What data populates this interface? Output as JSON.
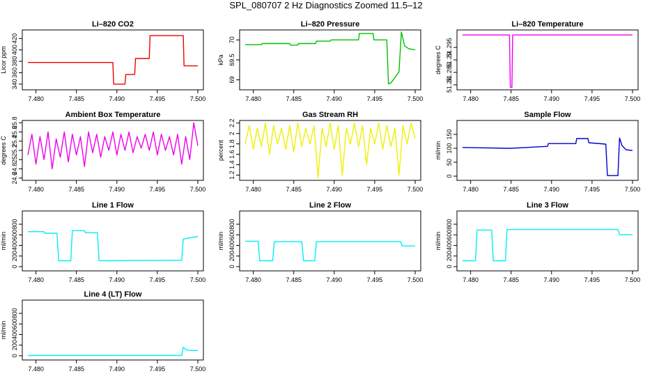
{
  "page": {
    "title": "SPL_080707  2 Hz Diagnostics Zoomed 11.5–12"
  },
  "colors": {
    "red": "#ee0000",
    "green": "#00c000",
    "magenta": "#ee00ee",
    "yellow": "#f0f000",
    "blue": "#0000cc",
    "cyan": "#00f0f0"
  },
  "chart_data": [
    {
      "type": "line",
      "title": "Li–820 CO2",
      "ylabel": "Licor ppm",
      "color": "red",
      "xlim": [
        7.479,
        7.5
      ],
      "xticks": [
        7.48,
        7.485,
        7.49,
        7.495,
        7.5
      ],
      "ylim": [
        330,
        435
      ],
      "yticks": [
        340,
        360,
        380,
        400,
        420
      ],
      "series": [
        {
          "x": [
            7.479,
            7.4895,
            7.4896,
            7.491,
            7.4911,
            7.4922,
            7.4923,
            7.494,
            7.4941,
            7.4982,
            7.4983,
            7.5
          ],
          "y": [
            378,
            378,
            340,
            340,
            357,
            357,
            385,
            385,
            425,
            425,
            372,
            372
          ]
        }
      ]
    },
    {
      "type": "line",
      "title": "Li–820 Pressure",
      "ylabel": "kPa",
      "color": "green",
      "xlim": [
        7.479,
        7.5
      ],
      "xticks": [
        7.48,
        7.485,
        7.49,
        7.495,
        7.5
      ],
      "ylim": [
        68.75,
        70.25
      ],
      "yticks": [
        69.0,
        69.5,
        70.0
      ],
      "series": [
        {
          "x": [
            7.479,
            7.481,
            7.4811,
            7.4845,
            7.4846,
            7.4855,
            7.4856,
            7.4877,
            7.4878,
            7.4895,
            7.4896,
            7.493,
            7.4931,
            7.4948,
            7.4949,
            7.4965,
            7.4967,
            7.497,
            7.498,
            7.4983,
            7.4987,
            7.4992,
            7.5
          ],
          "y": [
            69.88,
            69.88,
            69.91,
            69.91,
            69.87,
            69.87,
            69.91,
            69.91,
            69.97,
            69.97,
            70.0,
            70.0,
            70.16,
            70.16,
            70.0,
            70.0,
            68.9,
            68.92,
            69.2,
            70.2,
            69.85,
            69.78,
            69.75
          ]
        }
      ]
    },
    {
      "type": "line",
      "title": "Li–820 Temperature",
      "ylabel": "degrees C",
      "color": "magenta",
      "xlim": [
        7.479,
        7.5
      ],
      "xticks": [
        7.48,
        7.485,
        7.49,
        7.495,
        7.5
      ],
      "ylim": [
        51.278,
        51.302
      ],
      "yticks": [
        51.28,
        51.285,
        51.29,
        51.295
      ],
      "series": [
        {
          "x": [
            7.479,
            7.4848,
            7.4849,
            7.4851,
            7.4852,
            7.5
          ],
          "y": [
            51.3,
            51.3,
            51.279,
            51.279,
            51.3,
            51.3
          ]
        }
      ]
    },
    {
      "type": "line",
      "title": "Ambient Box Temperature",
      "ylabel": "degrees C",
      "color": "magenta",
      "xlim": [
        7.479,
        7.5
      ],
      "xticks": [
        7.48,
        7.485,
        7.49,
        7.495,
        7.5
      ],
      "ylim": [
        24.55,
        25.85
      ],
      "yticks": [
        24.6,
        24.8,
        25.0,
        25.2,
        25.4,
        25.6,
        25.8
      ],
      "series": [
        {
          "x": [
            7.479,
            7.4795,
            7.48,
            7.4805,
            7.481,
            7.4815,
            7.482,
            7.4825,
            7.483,
            7.4835,
            7.484,
            7.4845,
            7.485,
            7.4855,
            7.486,
            7.4865,
            7.487,
            7.4875,
            7.488,
            7.4885,
            7.489,
            7.4895,
            7.49,
            7.4905,
            7.491,
            7.4915,
            7.492,
            7.4925,
            7.493,
            7.4935,
            7.494,
            7.4945,
            7.495,
            7.4955,
            7.496,
            7.4965,
            7.497,
            7.4975,
            7.498,
            7.4985,
            7.499,
            7.4995,
            7.5
          ],
          "y": [
            25.1,
            25.55,
            24.9,
            25.5,
            25.0,
            25.6,
            24.8,
            25.45,
            25.05,
            25.6,
            24.95,
            25.55,
            25.1,
            25.5,
            24.85,
            25.6,
            25.15,
            25.55,
            25.05,
            25.5,
            25.2,
            25.6,
            25.1,
            25.55,
            25.2,
            25.6,
            25.15,
            25.5,
            25.25,
            25.55,
            25.2,
            25.6,
            25.1,
            25.55,
            25.2,
            25.5,
            25.1,
            25.55,
            24.9,
            25.5,
            25.0,
            25.8,
            25.3
          ]
        }
      ]
    },
    {
      "type": "line",
      "title": "Gas Stream RH",
      "ylabel": "percent",
      "color": "yellow",
      "xlim": [
        7.479,
        7.5
      ],
      "xticks": [
        7.48,
        7.485,
        7.49,
        7.495,
        7.5
      ],
      "ylim": [
        1.1,
        2.25
      ],
      "yticks": [
        1.2,
        1.4,
        1.6,
        1.8,
        2.0,
        2.2
      ],
      "series": [
        {
          "x": [
            7.479,
            7.4795,
            7.48,
            7.4805,
            7.481,
            7.4815,
            7.482,
            7.4825,
            7.483,
            7.4835,
            7.484,
            7.4845,
            7.485,
            7.4855,
            7.486,
            7.4865,
            7.487,
            7.4875,
            7.488,
            7.4885,
            7.489,
            7.4895,
            7.49,
            7.4905,
            7.491,
            7.4915,
            7.492,
            7.4925,
            7.493,
            7.4935,
            7.494,
            7.4945,
            7.495,
            7.4955,
            7.496,
            7.4965,
            7.497,
            7.4975,
            7.498,
            7.4985,
            7.499,
            7.4995,
            7.5
          ],
          "y": [
            1.8,
            2.15,
            1.7,
            2.1,
            1.75,
            2.2,
            1.6,
            2.15,
            1.8,
            2.1,
            1.7,
            2.15,
            1.65,
            2.2,
            1.75,
            2.1,
            1.8,
            2.15,
            1.15,
            2.1,
            1.75,
            2.2,
            1.7,
            2.15,
            1.2,
            2.1,
            1.8,
            2.2,
            1.75,
            2.15,
            1.4,
            2.1,
            1.8,
            2.2,
            1.7,
            2.15,
            1.75,
            2.1,
            1.2,
            2.15,
            1.8,
            2.2,
            1.9
          ]
        }
      ]
    },
    {
      "type": "line",
      "title": "Sample Flow",
      "ylabel": "ml/min",
      "color": "blue",
      "xlim": [
        7.479,
        7.5
      ],
      "xticks": [
        7.48,
        7.485,
        7.49,
        7.495,
        7.5
      ],
      "ylim": [
        -15,
        200
      ],
      "yticks": [
        0,
        50,
        100,
        150
      ],
      "series": [
        {
          "x": [
            7.479,
            7.4848,
            7.4849,
            7.4895,
            7.4896,
            7.493,
            7.4931,
            7.4945,
            7.4946,
            7.4967,
            7.4969,
            7.4982,
            7.4984,
            7.4987,
            7.4992,
            7.5
          ],
          "y": [
            103,
            100,
            100,
            107,
            117,
            117,
            135,
            135,
            120,
            115,
            2,
            2,
            137,
            110,
            95,
            92
          ]
        }
      ]
    },
    {
      "type": "line",
      "title": "Line 1 Flow",
      "ylabel": "ml/min",
      "color": "cyan",
      "xlim": [
        7.479,
        7.5
      ],
      "xticks": [
        7.48,
        7.485,
        7.49,
        7.495,
        7.5
      ],
      "ylim": [
        -80,
        1050
      ],
      "yticks": [
        0,
        200,
        400,
        600,
        800
      ],
      "series": [
        {
          "x": [
            7.479,
            7.481,
            7.4811,
            7.4826,
            7.4828,
            7.4843,
            7.4845,
            7.486,
            7.4861,
            7.4876,
            7.4878,
            7.498,
            7.4982,
            7.5
          ],
          "y": [
            660,
            660,
            630,
            630,
            110,
            110,
            680,
            680,
            640,
            640,
            110,
            120,
            520,
            570
          ]
        }
      ]
    },
    {
      "type": "line",
      "title": "Line 2 Flow",
      "ylabel": "ml/min",
      "color": "cyan",
      "xlim": [
        7.479,
        7.5
      ],
      "xticks": [
        7.48,
        7.485,
        7.49,
        7.495,
        7.5
      ],
      "ylim": [
        -80,
        1050
      ],
      "yticks": [
        0,
        200,
        400,
        600,
        800
      ],
      "series": [
        {
          "x": [
            7.479,
            7.4806,
            7.4808,
            7.4824,
            7.4826,
            7.486,
            7.4862,
            7.4876,
            7.4878,
            7.4982,
            7.4984,
            7.5
          ],
          "y": [
            480,
            480,
            110,
            110,
            470,
            470,
            110,
            110,
            470,
            470,
            390,
            390
          ]
        }
      ]
    },
    {
      "type": "line",
      "title": "Line 3 Flow",
      "ylabel": "ml/min",
      "color": "cyan",
      "xlim": [
        7.479,
        7.5
      ],
      "xticks": [
        7.48,
        7.485,
        7.49,
        7.495,
        7.5
      ],
      "ylim": [
        -80,
        1050
      ],
      "yticks": [
        0,
        200,
        400,
        600,
        800
      ],
      "series": [
        {
          "x": [
            7.479,
            7.4806,
            7.4808,
            7.4826,
            7.4828,
            7.4843,
            7.4845,
            7.4982,
            7.4984,
            7.5
          ],
          "y": [
            110,
            110,
            690,
            690,
            110,
            110,
            700,
            700,
            600,
            600
          ]
        }
      ]
    },
    {
      "type": "line",
      "title": "Line 4 (LT) Flow",
      "ylabel": "ml/min",
      "color": "cyan",
      "xlim": [
        7.479,
        7.5
      ],
      "xticks": [
        7.48,
        7.485,
        7.49,
        7.495,
        7.5
      ],
      "ylim": [
        -80,
        1050
      ],
      "yticks": [
        0,
        200,
        400,
        600,
        800
      ],
      "series": [
        {
          "x": [
            7.479,
            7.498,
            7.4982,
            7.4985,
            7.499,
            7.5
          ],
          "y": [
            5,
            5,
            160,
            120,
            100,
            100
          ]
        }
      ]
    }
  ]
}
